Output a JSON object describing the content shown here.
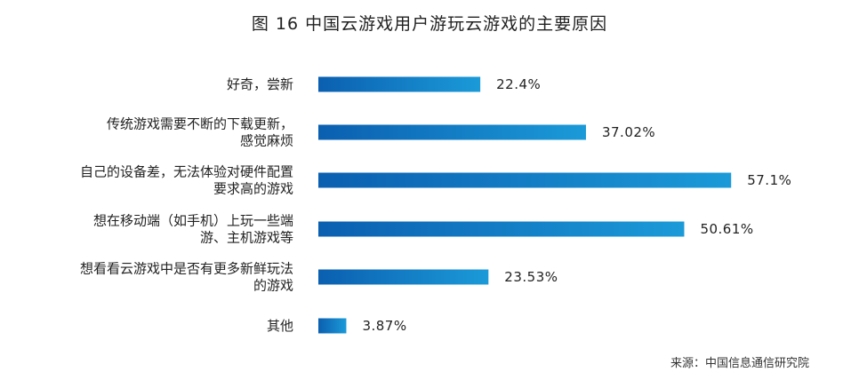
{
  "chart_data": {
    "type": "bar",
    "orientation": "horizontal",
    "title": "图 16 中国云游戏用户游玩云游戏的主要原因",
    "source": "来源：中国信息通信研究院",
    "categories": [
      [
        "好奇，尝新"
      ],
      [
        "传统游戏需要不断的下载更新，",
        "感觉麻烦"
      ],
      [
        "自己的设备差，无法体验对硬件配置",
        "要求高的游戏"
      ],
      [
        "想在移动端（如手机）上玩一些端",
        "游、主机游戏等"
      ],
      [
        "想看看云游戏中是否有更多新鲜玩法",
        "的游戏"
      ],
      [
        "其他"
      ]
    ],
    "values": [
      22.4,
      37.02,
      57.1,
      50.61,
      23.53,
      3.87
    ],
    "value_labels": [
      "22.4%",
      "37.02%",
      "57.1%",
      "50.61%",
      "23.53%",
      "3.87%"
    ],
    "xlim": [
      0,
      60
    ],
    "grid": false,
    "legend": "none",
    "colors": {
      "bar_start": "#0b5fb0",
      "bar_end": "#1b9ad8"
    }
  }
}
